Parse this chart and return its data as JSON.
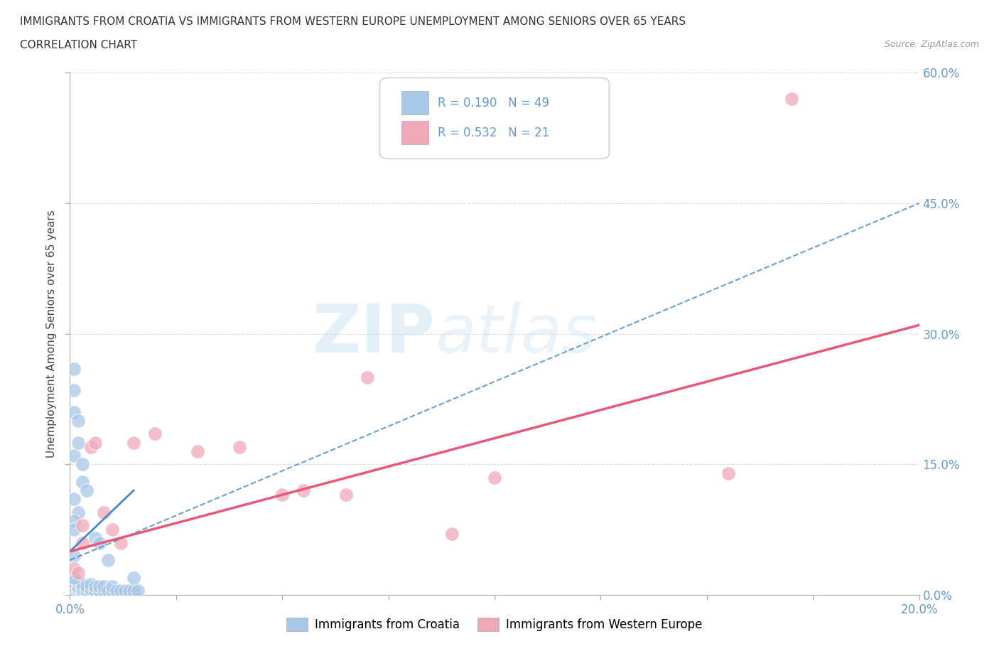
{
  "title_line1": "IMMIGRANTS FROM CROATIA VS IMMIGRANTS FROM WESTERN EUROPE UNEMPLOYMENT AMONG SENIORS OVER 65 YEARS",
  "title_line2": "CORRELATION CHART",
  "source": "Source: ZipAtlas.com",
  "ylabel": "Unemployment Among Seniors over 65 years",
  "xlim": [
    0.0,
    0.2
  ],
  "ylim": [
    0.0,
    0.6
  ],
  "xticks": [
    0.0,
    0.025,
    0.05,
    0.075,
    0.1,
    0.125,
    0.15,
    0.175,
    0.2
  ],
  "yticks": [
    0.0,
    0.15,
    0.3,
    0.45,
    0.6
  ],
  "ytick_labels": [
    "0.0%",
    "15.0%",
    "30.0%",
    "45.0%",
    "60.0%"
  ],
  "xtick_labels": [
    "0.0%",
    "",
    "",
    "",
    "",
    "",
    "",
    "",
    "20.0%"
  ],
  "croatia_R": 0.19,
  "croatia_N": 49,
  "western_R": 0.532,
  "western_N": 21,
  "croatia_color": "#a8c8e8",
  "western_color": "#f0a8b8",
  "croatia_line_color": "#4488cc",
  "western_line_color": "#e85878",
  "tick_color": "#6699cc",
  "background_color": "#ffffff",
  "grid_color": "#dddddd",
  "croatia_x": [
    0.001,
    0.001,
    0.001,
    0.002,
    0.002,
    0.002,
    0.002,
    0.003,
    0.003,
    0.003,
    0.004,
    0.004,
    0.005,
    0.005,
    0.005,
    0.006,
    0.006,
    0.007,
    0.007,
    0.008,
    0.008,
    0.009,
    0.01,
    0.01,
    0.011,
    0.012,
    0.013,
    0.014,
    0.015,
    0.016,
    0.001,
    0.001,
    0.001,
    0.002,
    0.002,
    0.001,
    0.003,
    0.003,
    0.004,
    0.001,
    0.002,
    0.001,
    0.001,
    0.006,
    0.007,
    0.001,
    0.009,
    0.001,
    0.015
  ],
  "croatia_y": [
    0.005,
    0.01,
    0.015,
    0.005,
    0.007,
    0.01,
    0.015,
    0.005,
    0.008,
    0.012,
    0.005,
    0.01,
    0.003,
    0.007,
    0.012,
    0.005,
    0.01,
    0.005,
    0.01,
    0.005,
    0.01,
    0.005,
    0.005,
    0.01,
    0.005,
    0.005,
    0.005,
    0.005,
    0.005,
    0.005,
    0.26,
    0.235,
    0.21,
    0.2,
    0.175,
    0.16,
    0.15,
    0.13,
    0.12,
    0.11,
    0.095,
    0.085,
    0.075,
    0.065,
    0.06,
    0.045,
    0.04,
    0.02,
    0.02
  ],
  "western_x": [
    0.001,
    0.002,
    0.003,
    0.003,
    0.005,
    0.006,
    0.008,
    0.01,
    0.012,
    0.015,
    0.02,
    0.03,
    0.04,
    0.05,
    0.055,
    0.065,
    0.07,
    0.09,
    0.1,
    0.155,
    0.17
  ],
  "western_y": [
    0.03,
    0.025,
    0.08,
    0.06,
    0.17,
    0.175,
    0.095,
    0.075,
    0.06,
    0.175,
    0.185,
    0.165,
    0.17,
    0.115,
    0.12,
    0.115,
    0.25,
    0.07,
    0.135,
    0.14,
    0.57
  ],
  "croatia_trend_x0": 0.0,
  "croatia_trend_y0": 0.04,
  "croatia_trend_x1": 0.2,
  "croatia_trend_y1": 0.45,
  "western_trend_x0": 0.0,
  "western_trend_y0": 0.05,
  "western_trend_x1": 0.2,
  "western_trend_y1": 0.31
}
